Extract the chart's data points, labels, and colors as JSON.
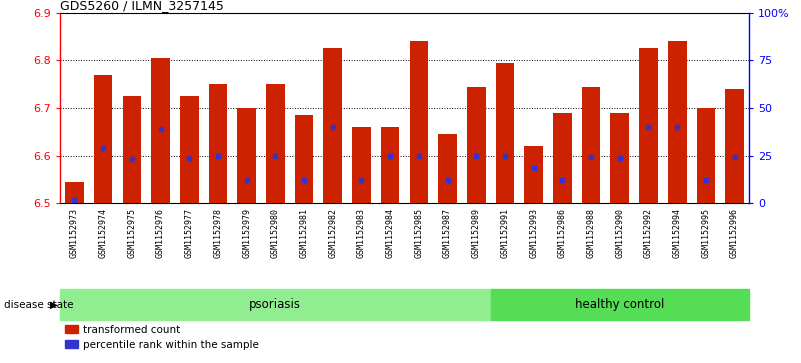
{
  "title": "GDS5260 / ILMN_3257145",
  "samples": [
    "GSM1152973",
    "GSM1152974",
    "GSM1152975",
    "GSM1152976",
    "GSM1152977",
    "GSM1152978",
    "GSM1152979",
    "GSM1152980",
    "GSM1152981",
    "GSM1152982",
    "GSM1152983",
    "GSM1152984",
    "GSM1152985",
    "GSM1152987",
    "GSM1152989",
    "GSM1152991",
    "GSM1152993",
    "GSM1152986",
    "GSM1152988",
    "GSM1152990",
    "GSM1152992",
    "GSM1152994",
    "GSM1152995",
    "GSM1152996"
  ],
  "bar_values": [
    6.545,
    6.77,
    6.725,
    6.805,
    6.725,
    6.75,
    6.7,
    6.75,
    6.685,
    6.825,
    6.66,
    6.66,
    6.84,
    6.645,
    6.745,
    6.795,
    6.62,
    6.69,
    6.745,
    6.69,
    6.825,
    6.84,
    6.7,
    6.74
  ],
  "blue_dot_values": [
    6.507,
    6.615,
    6.592,
    6.655,
    6.595,
    6.6,
    6.548,
    6.6,
    6.548,
    6.66,
    6.548,
    6.6,
    6.6,
    6.548,
    6.6,
    6.6,
    6.575,
    6.548,
    6.598,
    6.595,
    6.66,
    6.66,
    6.548,
    6.598
  ],
  "ylim": [
    6.5,
    6.9
  ],
  "yticks": [
    6.5,
    6.6,
    6.7,
    6.8,
    6.9
  ],
  "right_ytick_labels": [
    "0",
    "25",
    "50",
    "75",
    "100%"
  ],
  "right_ytick_positions": [
    0,
    25,
    50,
    75,
    100
  ],
  "bar_color": "#cc2200",
  "dot_color": "#3333cc",
  "psoriasis_count": 15,
  "healthy_count": 9,
  "psoriasis_label": "psoriasis",
  "healthy_label": "healthy control",
  "disease_state_label": "disease state",
  "legend_bar_label": "transformed count",
  "legend_dot_label": "percentile rank within the sample",
  "psoriasis_color": "#90ee90",
  "healthy_color": "#55dd55",
  "tick_bg_color": "#c8c8c8",
  "bar_width": 0.65,
  "ybase": 6.5
}
